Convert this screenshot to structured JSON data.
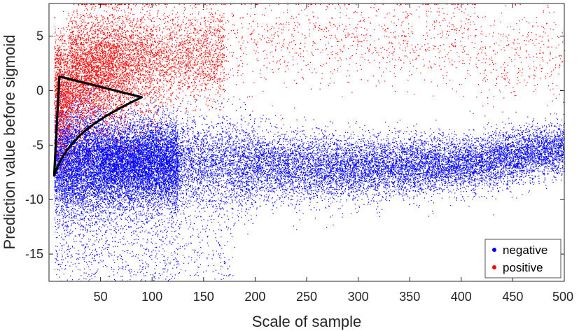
{
  "chart_data": {
    "type": "scatter",
    "xlabel": "Scale of sample",
    "ylabel": "Prediction value before sigmoid",
    "xlim": [
      0,
      500
    ],
    "ylim": [
      -17.5,
      8
    ],
    "xticks": [
      50,
      100,
      150,
      200,
      250,
      300,
      350,
      400,
      450,
      500
    ],
    "yticks": [
      -15,
      -10,
      -5,
      0,
      5
    ],
    "grid": false,
    "legend": {
      "placement": "bottom-right",
      "entries": [
        "negative",
        "positive"
      ]
    },
    "series": [
      {
        "name": "negative",
        "color": "#0000ff",
        "description_points": [
          [
            10,
            -6.0
          ],
          [
            20,
            -7.0
          ],
          [
            50,
            -6.5
          ],
          [
            100,
            -6.5
          ],
          [
            150,
            -7.0
          ],
          [
            200,
            -7.0
          ],
          [
            250,
            -6.5
          ],
          [
            300,
            -6.5
          ],
          [
            350,
            -6.5
          ],
          [
            400,
            -7.0
          ],
          [
            450,
            -6.5
          ],
          [
            500,
            -5.0
          ]
        ]
      },
      {
        "name": "positive",
        "color": "#ff0000",
        "description_points": [
          [
            20,
            0.0
          ],
          [
            40,
            2.0
          ],
          [
            60,
            3.0
          ],
          [
            90,
            4.0
          ],
          [
            120,
            3.0
          ],
          [
            180,
            6.0
          ],
          [
            250,
            6.5
          ],
          [
            330,
            7.0
          ],
          [
            400,
            5.0
          ],
          [
            480,
            2.0
          ]
        ]
      }
    ],
    "annotation_shape": {
      "type": "closed-curve",
      "color": "#000000",
      "points": [
        [
          5,
          -7.8
        ],
        [
          10,
          1.3
        ],
        [
          90,
          -0.6
        ],
        [
          60,
          -2.2
        ],
        [
          35,
          -3.8
        ],
        [
          15,
          -5.8
        ],
        [
          5,
          -7.8
        ]
      ]
    }
  }
}
